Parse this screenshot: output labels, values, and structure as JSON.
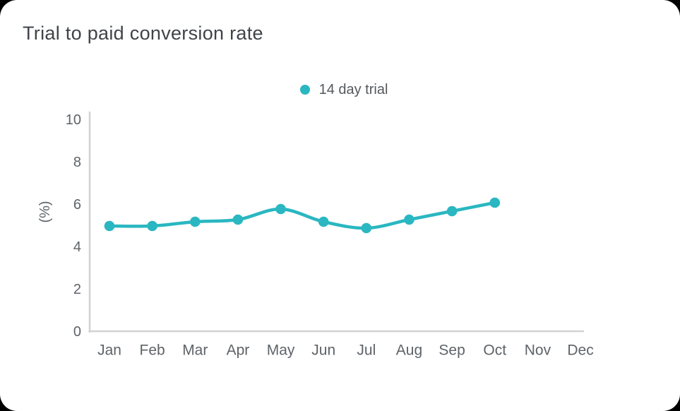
{
  "colors": {
    "series": "#2ab7c1",
    "axis_line": "#d2d2d2",
    "tick_text": "#5e6368",
    "axis_label_text": "#5e6368",
    "title_text": "#404448",
    "legend_text": "#54585c",
    "card_bg": "#ffffff",
    "page_bg": "#000000"
  },
  "chart_data": {
    "type": "line",
    "title": "Trial to paid conversion rate",
    "xlabel": "",
    "ylabel": "(%)",
    "categories": [
      "Jan",
      "Feb",
      "Mar",
      "Apr",
      "May",
      "Jun",
      "Jul",
      "Aug",
      "Sep",
      "Oct",
      "Nov",
      "Dec"
    ],
    "series": [
      {
        "name": "14 day trial",
        "color": "#2ab7c1",
        "values": [
          5.0,
          5.0,
          5.2,
          5.3,
          5.8,
          5.2,
          4.9,
          5.3,
          5.7,
          6.1,
          null,
          null
        ]
      }
    ],
    "ylim": [
      0,
      10
    ],
    "yticks": [
      0,
      2,
      4,
      6,
      8,
      10
    ],
    "grid": false,
    "legend_position": "top-center",
    "markers": true
  }
}
